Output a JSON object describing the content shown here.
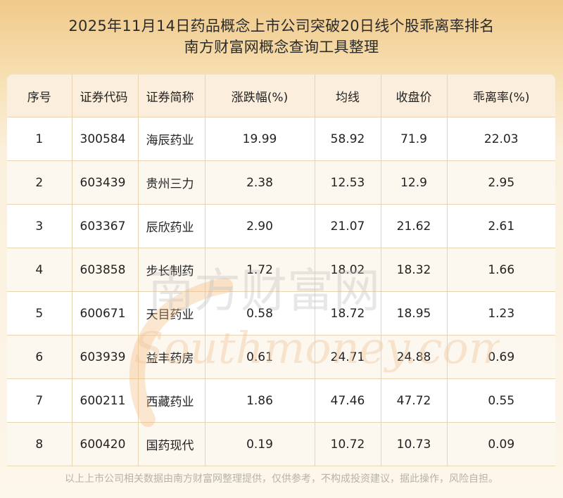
{
  "header": {
    "title_line1": "2025年11月14日药品概念上市公司突破20日线个股乖离率排名",
    "title_line2": "南方财富网概念查询工具整理"
  },
  "table": {
    "columns": [
      "序号",
      "证券代码",
      "证券简称",
      "涨跌幅(%)",
      "均线",
      "收盘价",
      "乖离率(%)"
    ],
    "rows": [
      [
        "1",
        "300584",
        "海辰药业",
        "19.99",
        "58.92",
        "71.9",
        "22.03"
      ],
      [
        "2",
        "603439",
        "贵州三力",
        "2.38",
        "12.53",
        "12.9",
        "2.95"
      ],
      [
        "3",
        "603367",
        "辰欣药业",
        "2.90",
        "21.07",
        "21.62",
        "2.61"
      ],
      [
        "4",
        "603858",
        "步长制药",
        "1.72",
        "18.02",
        "18.32",
        "1.66"
      ],
      [
        "5",
        "600671",
        "天目药业",
        "0.58",
        "18.72",
        "18.95",
        "1.23"
      ],
      [
        "6",
        "603939",
        "益丰药房",
        "0.61",
        "24.71",
        "24.88",
        "0.69"
      ],
      [
        "7",
        "600211",
        "西藏药业",
        "1.86",
        "47.46",
        "47.72",
        "0.55"
      ],
      [
        "8",
        "600420",
        "国药现代",
        "0.19",
        "10.72",
        "10.73",
        "0.09"
      ]
    ]
  },
  "watermark": {
    "cn": "南方财富网",
    "en": "Southmoney.com"
  },
  "footer": {
    "disclaimer": "以上上市公司相关数据由南方财富网整理提供，仅供参考，不构成投资建议，据此操作，风险自担。"
  }
}
